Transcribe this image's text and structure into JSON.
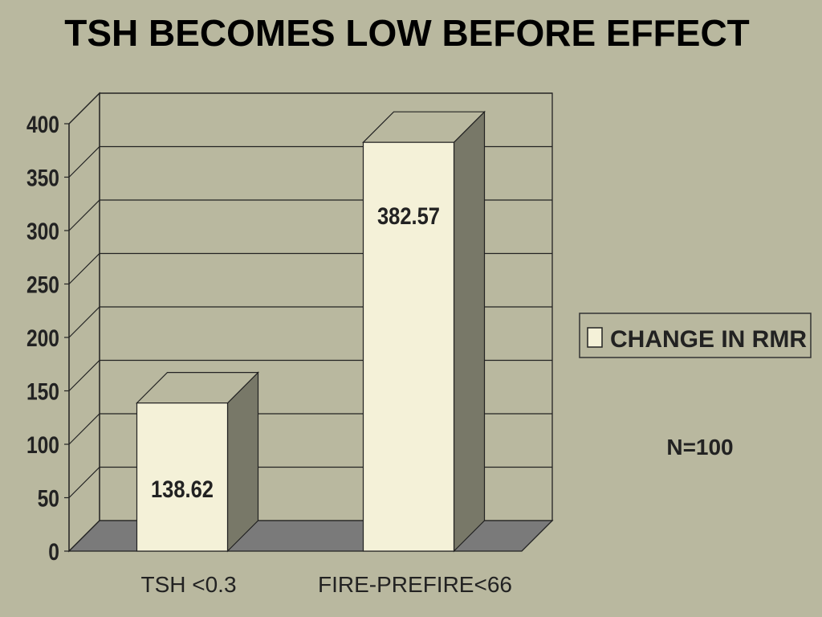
{
  "slide": {
    "title": "TSH BECOMES LOW BEFORE EFFECT",
    "note": "N=100"
  },
  "colors": {
    "background": "#b9b89f",
    "bar_front": "#f4f1d8",
    "bar_side": "#787868",
    "bar_top": "#b9b89f",
    "floor": "#7a7a7a",
    "grid": "#222222"
  },
  "chart_data": {
    "type": "bar",
    "title": "TSH BECOMES LOW BEFORE EFFECT",
    "categories": [
      "TSH <0.3",
      "FIRE-PREFIRE<66"
    ],
    "series": [
      {
        "name": "CHANGE IN RMR",
        "values": [
          138.62,
          382.57
        ]
      }
    ],
    "data_labels": [
      "138.62",
      "382.57"
    ],
    "yticks": [
      "0",
      "50",
      "100",
      "150",
      "200",
      "250",
      "300",
      "350",
      "400"
    ],
    "ylim": [
      0,
      400
    ],
    "xlabel": "",
    "ylabel": "",
    "grid": true,
    "legend": "right",
    "style": "3d"
  }
}
